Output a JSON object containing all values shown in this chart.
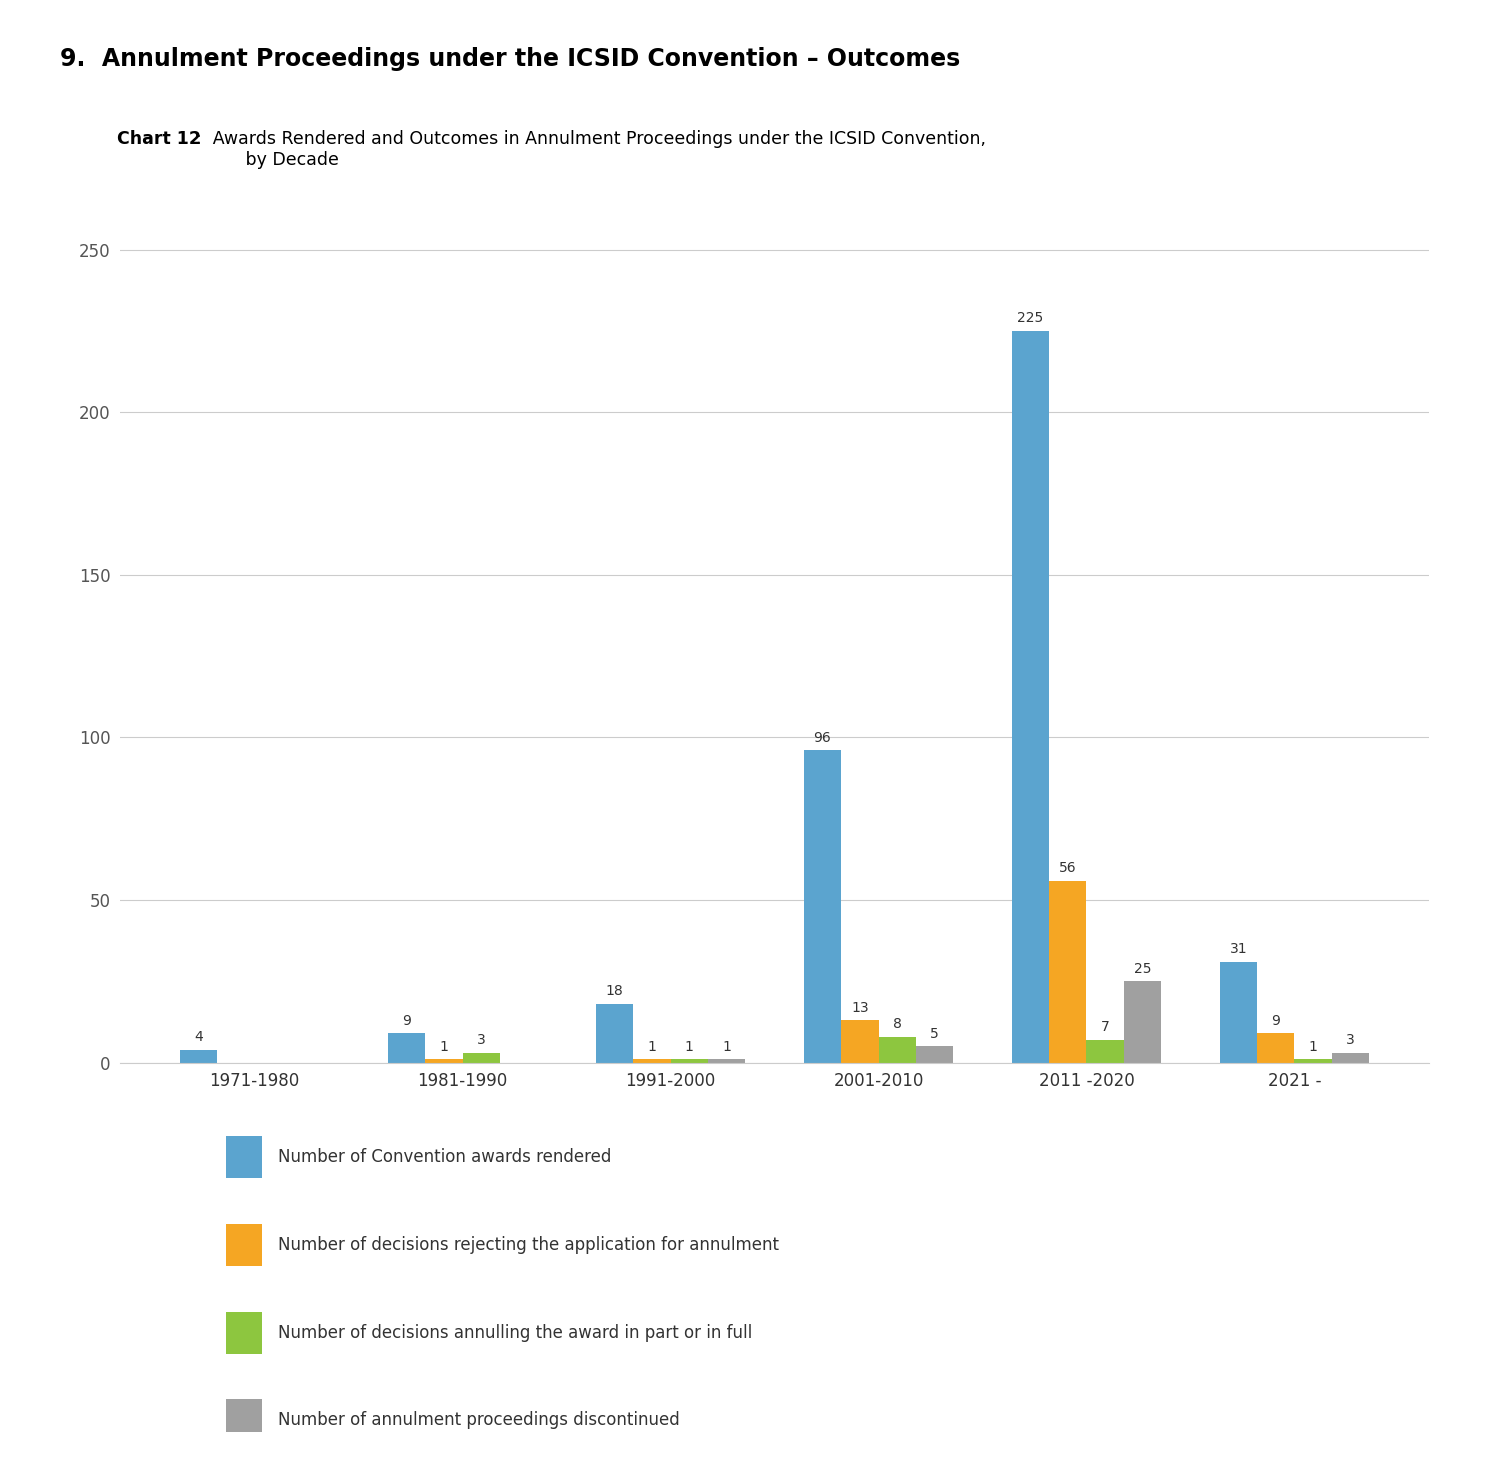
{
  "title_main": "9.  Annulment Proceedings under the ICSID Convention – Outcomes",
  "chart_label_bold": "Chart 12",
  "chart_label_text": ":  Awards Rendered and Outcomes in Annulment Proceedings under the ICSID Convention,\n         by Decade",
  "categories": [
    "1971-1980",
    "1981-1990",
    "1991-2000",
    "2001-2010",
    "2011 -2020",
    "2021 -"
  ],
  "series": {
    "awards": [
      4,
      9,
      18,
      96,
      225,
      31
    ],
    "rejecting": [
      0,
      1,
      1,
      13,
      56,
      9
    ],
    "annulling": [
      0,
      3,
      1,
      8,
      7,
      1
    ],
    "discontinued": [
      0,
      0,
      1,
      5,
      25,
      3
    ]
  },
  "colors": {
    "awards": "#5BA4CF",
    "rejecting": "#F5A623",
    "annulling": "#8DC63F",
    "discontinued": "#A0A0A0"
  },
  "legend": [
    "Number of Convention awards rendered",
    "Number of decisions rejecting the application for annulment",
    "Number of decisions annulling the award in part or in full",
    "Number of annulment proceedings discontinued"
  ],
  "ylim": [
    0,
    270
  ],
  "yticks": [
    0,
    50,
    100,
    150,
    200,
    250
  ],
  "background_color": "#ffffff",
  "bar_width": 0.18
}
